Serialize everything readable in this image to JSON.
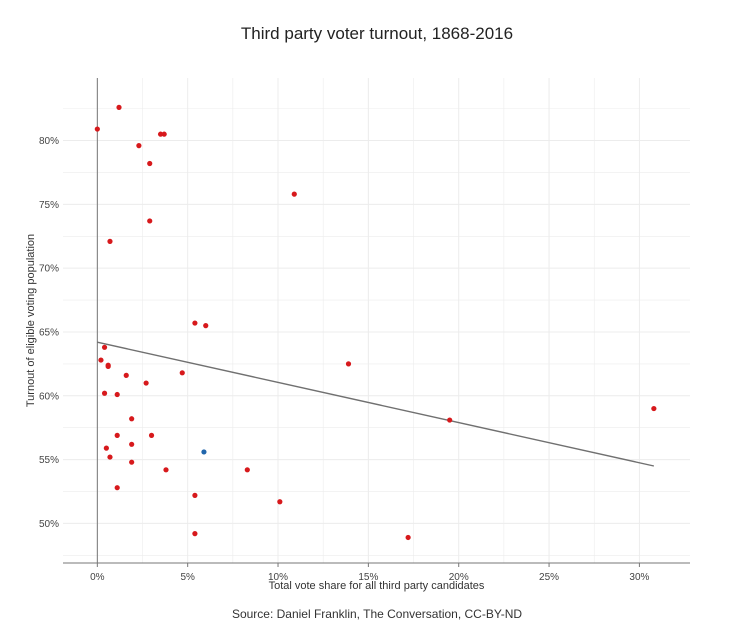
{
  "chart_data": {
    "type": "scatter",
    "title": "Third party voter turnout, 1868-2016",
    "xlabel": "Total vote share for all third party candidates",
    "ylabel": "Turnout of eligible voting population",
    "source": "Source: Daniel Franklin, The Conversation, CC-BY-ND",
    "xlim": [
      -1.9,
      32.8
    ],
    "ylim": [
      46.9,
      84.9
    ],
    "x_ticks": [
      0,
      5,
      10,
      15,
      20,
      25,
      30
    ],
    "x_tick_labels": [
      "0%",
      "5%",
      "10%",
      "15%",
      "20%",
      "25%",
      "30%"
    ],
    "y_ticks": [
      50,
      55,
      60,
      65,
      70,
      75,
      80
    ],
    "y_tick_labels": [
      "50%",
      "55%",
      "60%",
      "65%",
      "70%",
      "75%",
      "80%"
    ],
    "grid": true,
    "colors": {
      "points": "#d7191c",
      "highlight": "#2166ac",
      "trend": "#707070",
      "axis": "#777777",
      "grid": "#ececec"
    },
    "points": [
      {
        "x": 0.0,
        "y": 80.9
      },
      {
        "x": 1.2,
        "y": 82.6
      },
      {
        "x": 3.5,
        "y": 80.5
      },
      {
        "x": 3.7,
        "y": 80.5
      },
      {
        "x": 2.3,
        "y": 79.6
      },
      {
        "x": 2.9,
        "y": 78.2
      },
      {
        "x": 10.9,
        "y": 75.8
      },
      {
        "x": 2.9,
        "y": 73.7
      },
      {
        "x": 0.7,
        "y": 72.1
      },
      {
        "x": 5.4,
        "y": 65.7
      },
      {
        "x": 6.0,
        "y": 65.5
      },
      {
        "x": 0.4,
        "y": 63.8
      },
      {
        "x": 0.2,
        "y": 62.8
      },
      {
        "x": 0.6,
        "y": 62.4
      },
      {
        "x": 0.6,
        "y": 62.3
      },
      {
        "x": 13.9,
        "y": 62.5
      },
      {
        "x": 1.6,
        "y": 61.6
      },
      {
        "x": 4.7,
        "y": 61.8
      },
      {
        "x": 2.7,
        "y": 61.0
      },
      {
        "x": 0.4,
        "y": 60.2
      },
      {
        "x": 1.1,
        "y": 60.1
      },
      {
        "x": 30.8,
        "y": 59.0
      },
      {
        "x": 19.5,
        "y": 58.1
      },
      {
        "x": 1.9,
        "y": 58.2
      },
      {
        "x": 1.1,
        "y": 56.9
      },
      {
        "x": 3.0,
        "y": 56.9
      },
      {
        "x": 1.9,
        "y": 56.2
      },
      {
        "x": 0.5,
        "y": 55.9
      },
      {
        "x": 0.7,
        "y": 55.2
      },
      {
        "x": 1.9,
        "y": 54.8
      },
      {
        "x": 3.8,
        "y": 54.2
      },
      {
        "x": 8.3,
        "y": 54.2
      },
      {
        "x": 1.1,
        "y": 52.8
      },
      {
        "x": 5.4,
        "y": 52.2
      },
      {
        "x": 10.1,
        "y": 51.7
      },
      {
        "x": 5.4,
        "y": 49.2
      },
      {
        "x": 17.2,
        "y": 48.9
      }
    ],
    "highlight_points": [
      {
        "x": 5.9,
        "y": 55.6
      }
    ],
    "trend_line": {
      "x": [
        0,
        30.8
      ],
      "y": [
        64.2,
        54.5
      ]
    }
  }
}
